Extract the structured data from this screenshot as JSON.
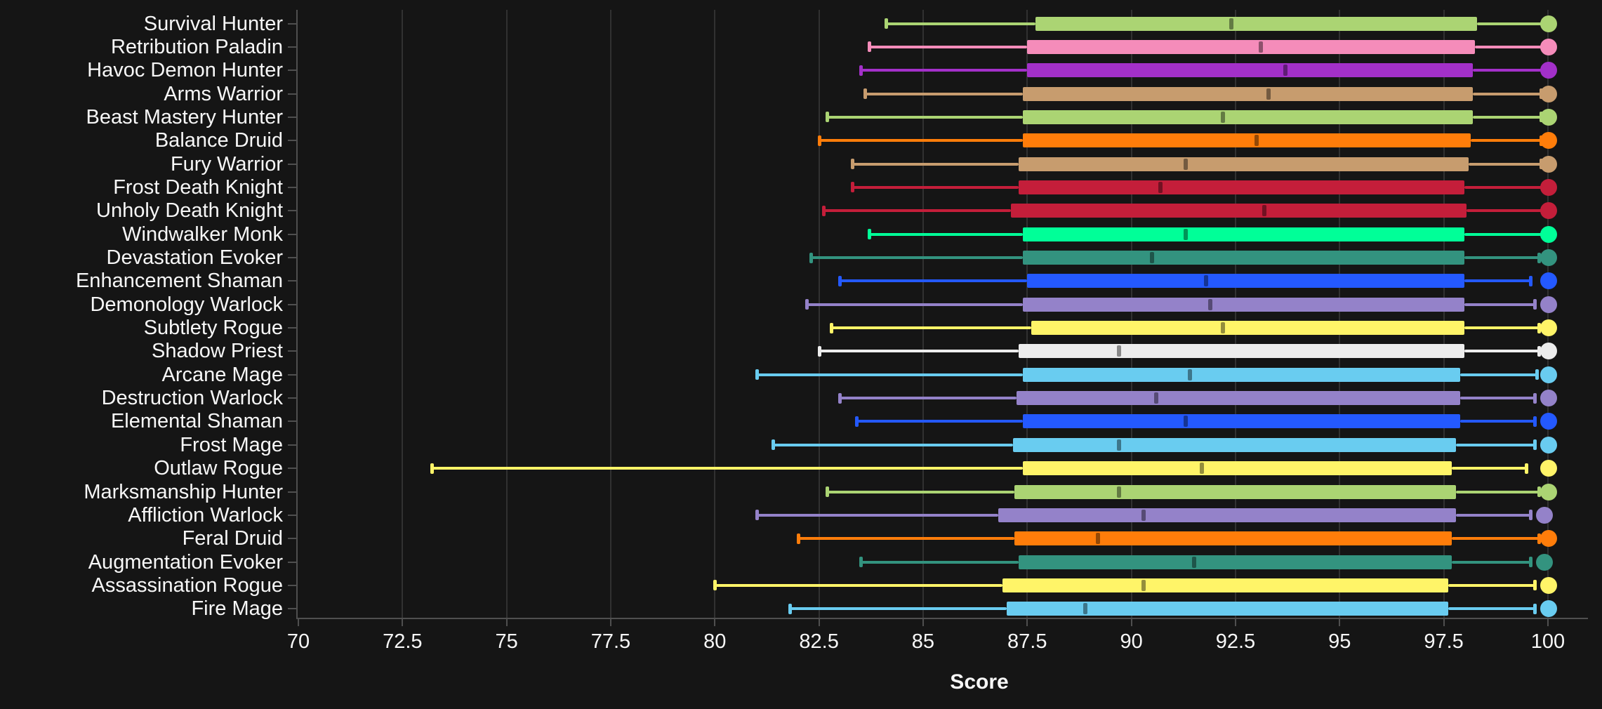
{
  "chart_data": {
    "type": "boxplot",
    "orientation": "horizontal",
    "xlabel": "Score",
    "xlim": [
      70,
      101.3
    ],
    "x_ticks": [
      "70",
      "72.5",
      "75",
      "77.5",
      "80",
      "82.5",
      "85",
      "87.5",
      "90",
      "92.5",
      "95",
      "97.5",
      "100"
    ],
    "x_tick_values": [
      70,
      72.5,
      75,
      77.5,
      80,
      82.5,
      85,
      87.5,
      90,
      92.5,
      95,
      97.5,
      100
    ],
    "grid": true,
    "legend": "none",
    "colors": {
      "background": "#151515",
      "gridline": "#313131",
      "axis": "#4f4f4f",
      "text": "#f7f7f7"
    },
    "rows": [
      {
        "label": "Survival Hunter",
        "class": "Hunter",
        "color": "#ABD473",
        "min": 84.1,
        "q1": 87.7,
        "median": 92.4,
        "q3": 98.3,
        "whisker_high": 99.9,
        "max": 100
      },
      {
        "label": "Retribution Paladin",
        "class": "Paladin",
        "color": "#F58CBA",
        "min": 83.7,
        "q1": 87.5,
        "median": 93.1,
        "q3": 98.25,
        "whisker_high": 99.9,
        "max": 100
      },
      {
        "label": "Havoc Demon Hunter",
        "class": "Demon Hunter",
        "color": "#A330C9",
        "min": 83.5,
        "q1": 87.5,
        "median": 93.7,
        "q3": 98.2,
        "whisker_high": 99.9,
        "max": 100
      },
      {
        "label": "Arms Warrior",
        "class": "Warrior",
        "color": "#C79C6E",
        "min": 83.6,
        "q1": 87.4,
        "median": 93.3,
        "q3": 98.2,
        "whisker_high": 99.85,
        "max": 100
      },
      {
        "label": "Beast Mastery Hunter",
        "class": "Hunter",
        "color": "#ABD473",
        "min": 82.7,
        "q1": 87.4,
        "median": 92.2,
        "q3": 98.2,
        "whisker_high": 99.85,
        "max": 100
      },
      {
        "label": "Balance Druid",
        "class": "Druid",
        "color": "#FF7D0A",
        "min": 82.5,
        "q1": 87.4,
        "median": 93.0,
        "q3": 98.15,
        "whisker_high": 99.85,
        "max": 100
      },
      {
        "label": "Fury Warrior",
        "class": "Warrior",
        "color": "#C79C6E",
        "min": 83.3,
        "q1": 87.3,
        "median": 91.3,
        "q3": 98.1,
        "whisker_high": 99.85,
        "max": 100
      },
      {
        "label": "Frost Death Knight",
        "class": "Death Knight",
        "color": "#C41E3A",
        "min": 83.3,
        "q1": 87.3,
        "median": 90.7,
        "q3": 98.0,
        "whisker_high": 99.9,
        "max": 100
      },
      {
        "label": "Unholy Death Knight",
        "class": "Death Knight",
        "color": "#C41E3A",
        "min": 82.6,
        "q1": 87.1,
        "median": 93.2,
        "q3": 98.05,
        "whisker_high": 99.9,
        "max": 100
      },
      {
        "label": "Windwalker Monk",
        "class": "Monk",
        "color": "#00FF98",
        "min": 83.7,
        "q1": 87.4,
        "median": 91.3,
        "q3": 98.0,
        "whisker_high": 99.9,
        "max": 100
      },
      {
        "label": "Devastation Evoker",
        "class": "Evoker",
        "color": "#33937F",
        "min": 82.3,
        "q1": 87.4,
        "median": 90.5,
        "q3": 98.0,
        "whisker_high": 99.8,
        "max": 100
      },
      {
        "label": "Enhancement Shaman",
        "class": "Shaman",
        "color": "#2459FF",
        "min": 83.0,
        "q1": 87.5,
        "median": 91.8,
        "q3": 98.0,
        "whisker_high": 99.6,
        "max": 100
      },
      {
        "label": "Demonology Warlock",
        "class": "Warlock",
        "color": "#9482C9",
        "min": 82.2,
        "q1": 87.4,
        "median": 91.9,
        "q3": 98.0,
        "whisker_high": 99.7,
        "max": 100
      },
      {
        "label": "Subtlety Rogue",
        "class": "Rogue",
        "color": "#FFF468",
        "min": 82.8,
        "q1": 87.6,
        "median": 92.2,
        "q3": 98.0,
        "whisker_high": 99.8,
        "max": 100
      },
      {
        "label": "Shadow Priest",
        "class": "Priest",
        "color": "#EDEDED",
        "min": 82.5,
        "q1": 87.3,
        "median": 89.7,
        "q3": 98.0,
        "whisker_high": 99.8,
        "max": 100
      },
      {
        "label": "Arcane Mage",
        "class": "Mage",
        "color": "#69CCF0",
        "min": 81.0,
        "q1": 87.4,
        "median": 91.4,
        "q3": 97.9,
        "whisker_high": 99.75,
        "max": 100
      },
      {
        "label": "Destruction Warlock",
        "class": "Warlock",
        "color": "#9482C9",
        "min": 83.0,
        "q1": 87.25,
        "median": 90.6,
        "q3": 97.9,
        "whisker_high": 99.7,
        "max": 100
      },
      {
        "label": "Elemental Shaman",
        "class": "Shaman",
        "color": "#2459FF",
        "min": 83.4,
        "q1": 87.4,
        "median": 91.3,
        "q3": 97.9,
        "whisker_high": 99.7,
        "max": 100
      },
      {
        "label": "Frost Mage",
        "class": "Mage",
        "color": "#69CCF0",
        "min": 81.4,
        "q1": 87.15,
        "median": 89.7,
        "q3": 97.8,
        "whisker_high": 99.7,
        "max": 100
      },
      {
        "label": "Outlaw Rogue",
        "class": "Rogue",
        "color": "#FFF468",
        "min": 73.2,
        "q1": 87.4,
        "median": 91.7,
        "q3": 97.7,
        "whisker_high": 99.5,
        "max": 100
      },
      {
        "label": "Marksmanship Hunter",
        "class": "Hunter",
        "color": "#ABD473",
        "min": 82.7,
        "q1": 87.2,
        "median": 89.7,
        "q3": 97.8,
        "whisker_high": 99.8,
        "max": 100
      },
      {
        "label": "Affliction Warlock",
        "class": "Warlock",
        "color": "#9482C9",
        "min": 81.0,
        "q1": 86.8,
        "median": 90.3,
        "q3": 97.8,
        "whisker_high": 99.6,
        "max": 99.9
      },
      {
        "label": "Feral Druid",
        "class": "Druid",
        "color": "#FF7D0A",
        "min": 82.0,
        "q1": 87.2,
        "median": 89.2,
        "q3": 97.7,
        "whisker_high": 99.8,
        "max": 100
      },
      {
        "label": "Augmentation Evoker",
        "class": "Evoker",
        "color": "#33937F",
        "min": 83.5,
        "q1": 87.3,
        "median": 91.5,
        "q3": 97.7,
        "whisker_high": 99.6,
        "max": 99.9
      },
      {
        "label": "Assassination Rogue",
        "class": "Rogue",
        "color": "#FFF468",
        "min": 80.0,
        "q1": 86.9,
        "median": 90.3,
        "q3": 97.6,
        "whisker_high": 99.7,
        "max": 100
      },
      {
        "label": "Fire Mage",
        "class": "Mage",
        "color": "#69CCF0",
        "min": 81.8,
        "q1": 87.0,
        "median": 88.9,
        "q3": 97.6,
        "whisker_high": 99.7,
        "max": 100
      }
    ]
  }
}
